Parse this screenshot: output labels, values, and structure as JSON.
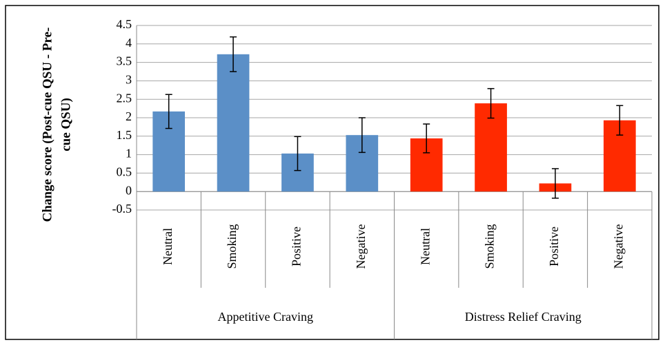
{
  "chart_data": {
    "type": "bar",
    "ylabel": [
      "Change score (Post-cue QSU - Pre-",
      "cue QSU)"
    ],
    "groups": [
      {
        "name": "Appetitive Craving",
        "color": "#5b8fc7",
        "categories": [
          "Neutral",
          "Smoking",
          "Positive",
          "Negative"
        ],
        "values": [
          2.17,
          3.72,
          1.03,
          1.53
        ],
        "errors": [
          0.46,
          0.47,
          0.46,
          0.47
        ]
      },
      {
        "name": "Distress Relief Craving",
        "color": "#ff2a00",
        "categories": [
          "Neutral",
          "Smoking",
          "Positive",
          "Negative"
        ],
        "values": [
          1.44,
          2.39,
          0.22,
          1.93
        ],
        "errors": [
          0.39,
          0.4,
          0.4,
          0.4
        ]
      }
    ],
    "ylim": [
      -0.5,
      4.5
    ],
    "yticks": [
      -0.5,
      0,
      0.5,
      1,
      1.5,
      2,
      2.5,
      3,
      3.5,
      4,
      4.5
    ],
    "grid": true
  }
}
